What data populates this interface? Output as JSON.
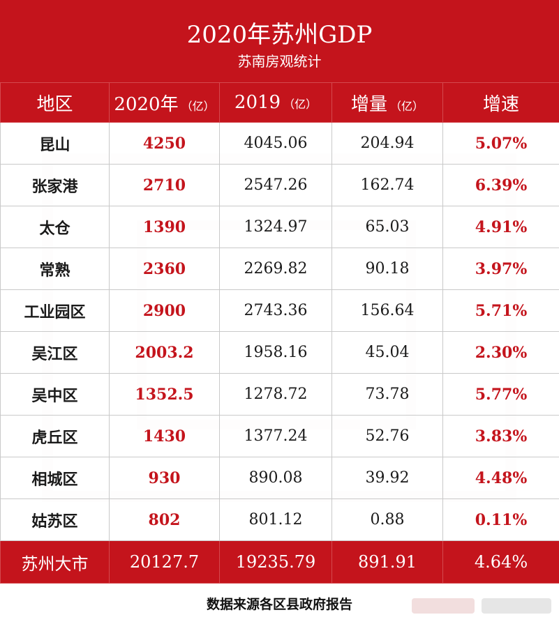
{
  "title": "2020年苏州GDP",
  "subtitle": "苏南房观统计",
  "headers": {
    "region": "地区",
    "y2020": "2020年",
    "y2020_unit": "（亿）",
    "y2019": "2019",
    "y2019_unit": "（亿）",
    "increase": "增量",
    "increase_unit": "（亿）",
    "rate": "增速"
  },
  "rows": [
    {
      "region": "昆山",
      "y2020": "4250",
      "y2019": "4045.06",
      "increase": "204.94",
      "rate": "5.07%"
    },
    {
      "region": "张家港",
      "y2020": "2710",
      "y2019": "2547.26",
      "increase": "162.74",
      "rate": "6.39%"
    },
    {
      "region": "太仓",
      "y2020": "1390",
      "y2019": "1324.97",
      "increase": "65.03",
      "rate": "4.91%"
    },
    {
      "region": "常熟",
      "y2020": "2360",
      "y2019": "2269.82",
      "increase": "90.18",
      "rate": "3.97%"
    },
    {
      "region": "工业园区",
      "y2020": "2900",
      "y2019": "2743.36",
      "increase": "156.64",
      "rate": "5.71%"
    },
    {
      "region": "吴江区",
      "y2020": "2003.2",
      "y2019": "1958.16",
      "increase": "45.04",
      "rate": "2.30%"
    },
    {
      "region": "吴中区",
      "y2020": "1352.5",
      "y2019": "1278.72",
      "increase": "73.78",
      "rate": "5.77%"
    },
    {
      "region": "虎丘区",
      "y2020": "1430",
      "y2019": "1377.24",
      "increase": "52.76",
      "rate": "3.83%"
    },
    {
      "region": "相城区",
      "y2020": "930",
      "y2019": "890.08",
      "increase": "39.92",
      "rate": "4.48%"
    },
    {
      "region": "姑苏区",
      "y2020": "802",
      "y2019": "801.12",
      "increase": "0.88",
      "rate": "0.11%"
    }
  ],
  "total": {
    "region": "苏州大市",
    "y2020": "20127.7",
    "y2019": "19235.79",
    "increase": "891.91",
    "rate": "4.64%"
  },
  "source": "数据来源各区县政府报告",
  "colors": {
    "brand_red": "#c4141c"
  }
}
